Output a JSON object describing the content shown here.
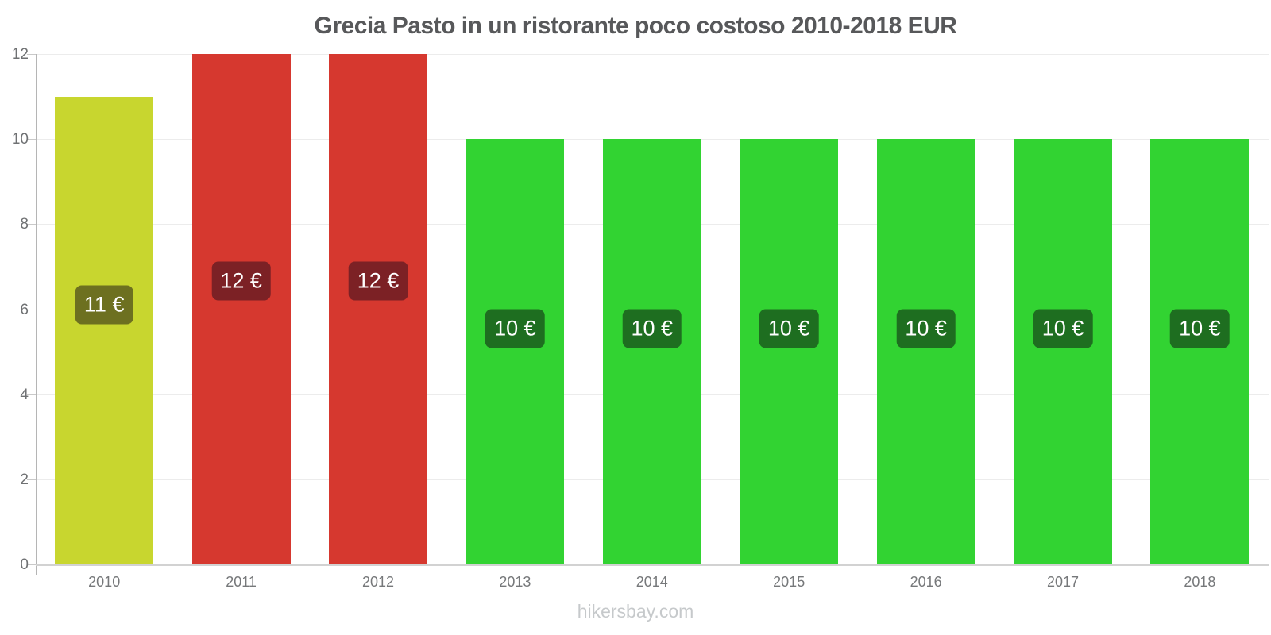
{
  "chart_data": {
    "type": "bar",
    "title": "Grecia Pasto in un ristorante poco costoso 2010-2018 EUR",
    "categories": [
      "2010",
      "2011",
      "2012",
      "2013",
      "2014",
      "2015",
      "2016",
      "2017",
      "2018"
    ],
    "values": [
      11,
      12,
      12,
      10,
      10,
      10,
      10,
      10,
      10
    ],
    "value_labels": [
      "11 €",
      "12 €",
      "12 €",
      "10 €",
      "10 €",
      "10 €",
      "10 €",
      "10 €",
      "10 €"
    ],
    "bar_colors": [
      "#c8d62f",
      "#d6382f",
      "#d6382f",
      "#32d332",
      "#32d332",
      "#32d332",
      "#32d332",
      "#32d332",
      "#32d332"
    ],
    "badge_colors": [
      "#6d7020",
      "#7c2125",
      "#7c2125",
      "#1e6e20",
      "#1e6e20",
      "#1e6e20",
      "#1e6e20",
      "#1e6e20",
      "#1e6e20"
    ],
    "xlabel": "",
    "ylabel": "",
    "ylim": [
      0,
      12
    ],
    "yticks": [
      0,
      2,
      4,
      6,
      8,
      10,
      12
    ],
    "grid": "horizontal",
    "legend": "none",
    "footer": "hikersbay.com"
  }
}
